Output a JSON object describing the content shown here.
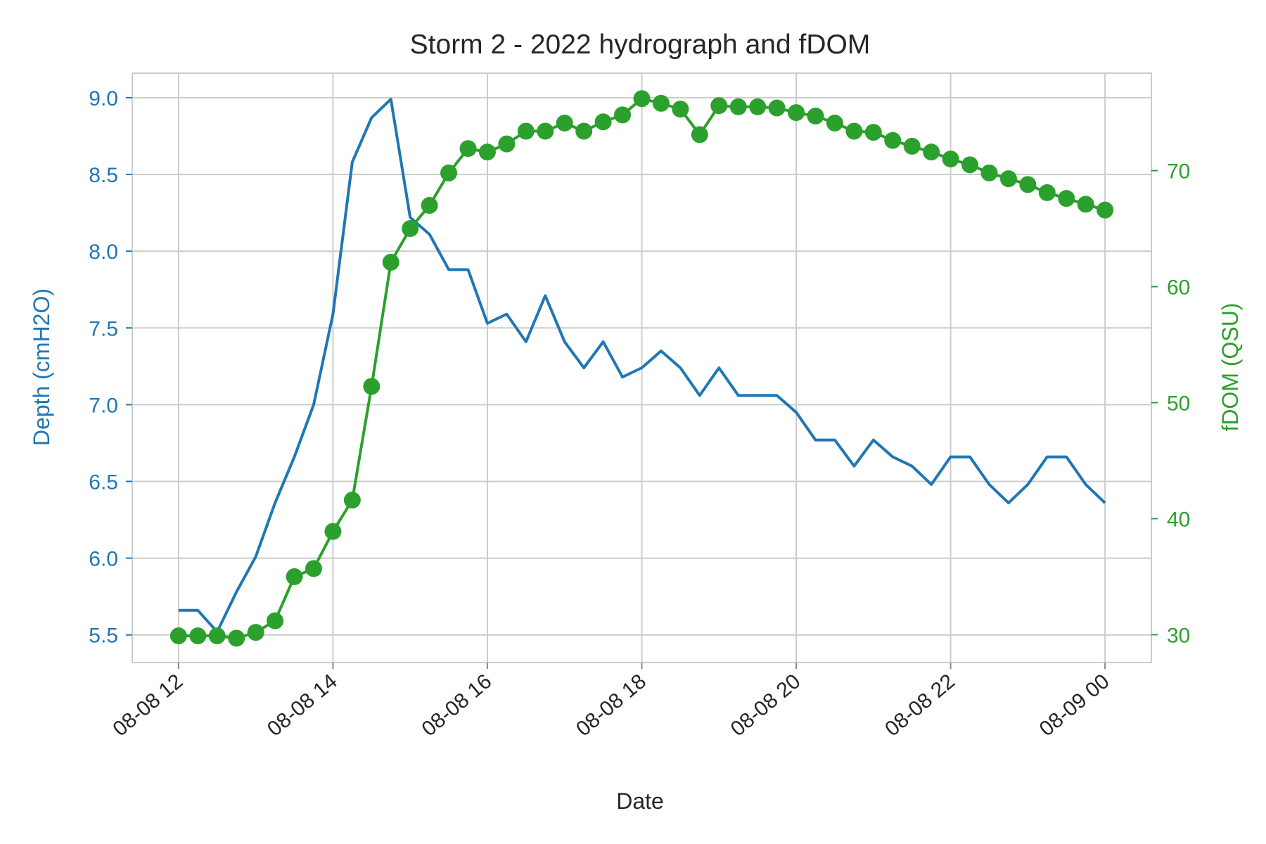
{
  "colors": {
    "depth": "#1f77b4",
    "fdom": "#2ca02c",
    "grid": "#cccccc",
    "text": "#262626"
  },
  "chart_data": {
    "type": "line",
    "title": "Storm 2 - 2022 hydrograph and fDOM",
    "xlabel": "Date",
    "ylabel_left": "Depth (cmH2O)",
    "ylabel_right": "fDOM (QSU)",
    "xlim_hours": [
      11.4,
      24.6
    ],
    "ylim_left": [
      5.32,
      9.16
    ],
    "ylim_right": [
      27.6,
      78.4
    ],
    "x_ticks": [
      {
        "hour": 12,
        "label": "08-08 12"
      },
      {
        "hour": 14,
        "label": "08-08 14"
      },
      {
        "hour": 16,
        "label": "08-08 16"
      },
      {
        "hour": 18,
        "label": "08-08 18"
      },
      {
        "hour": 20,
        "label": "08-08 20"
      },
      {
        "hour": 22,
        "label": "08-08 22"
      },
      {
        "hour": 24,
        "label": "08-09 00"
      }
    ],
    "y_ticks_left": [
      "5.5",
      "6.0",
      "6.5",
      "7.0",
      "7.5",
      "8.0",
      "8.5",
      "9.0"
    ],
    "y_ticks_right": [
      "30",
      "40",
      "50",
      "60",
      "70"
    ],
    "grid": true,
    "series": [
      {
        "name": "Depth (cmH2O)",
        "axis": "left",
        "style": "line",
        "x_start_hour": 12.0,
        "x_step_hours": 0.25,
        "values": [
          5.66,
          5.66,
          5.52,
          5.78,
          6.01,
          6.36,
          6.66,
          7.0,
          7.59,
          8.58,
          8.87,
          8.99,
          8.22,
          8.11,
          7.88,
          7.88,
          7.53,
          7.59,
          7.41,
          7.71,
          7.41,
          7.24,
          7.41,
          7.18,
          7.24,
          7.35,
          7.24,
          7.06,
          7.24,
          7.06,
          7.06,
          7.06,
          6.95,
          6.77,
          6.77,
          6.6,
          6.77,
          6.66,
          6.6,
          6.48,
          6.66,
          6.66,
          6.48,
          6.36,
          6.48,
          6.66,
          6.66,
          6.48,
          6.36
        ]
      },
      {
        "name": "fDOM (QSU)",
        "axis": "right",
        "style": "line-markers",
        "x_start_hour": 12.0,
        "x_step_hours": 0.25,
        "values": [
          29.9,
          29.9,
          29.9,
          29.7,
          30.2,
          31.2,
          35.0,
          35.7,
          38.9,
          41.6,
          51.4,
          62.1,
          65.0,
          67.0,
          69.8,
          71.9,
          71.6,
          72.3,
          73.4,
          73.4,
          74.1,
          73.4,
          74.2,
          74.8,
          76.2,
          75.8,
          75.3,
          73.1,
          75.6,
          75.5,
          75.5,
          75.4,
          75.0,
          74.7,
          74.1,
          73.4,
          73.3,
          72.6,
          72.1,
          71.6,
          71.0,
          70.5,
          69.8,
          69.3,
          68.8,
          68.1,
          67.6,
          67.1,
          66.6
        ]
      }
    ]
  }
}
